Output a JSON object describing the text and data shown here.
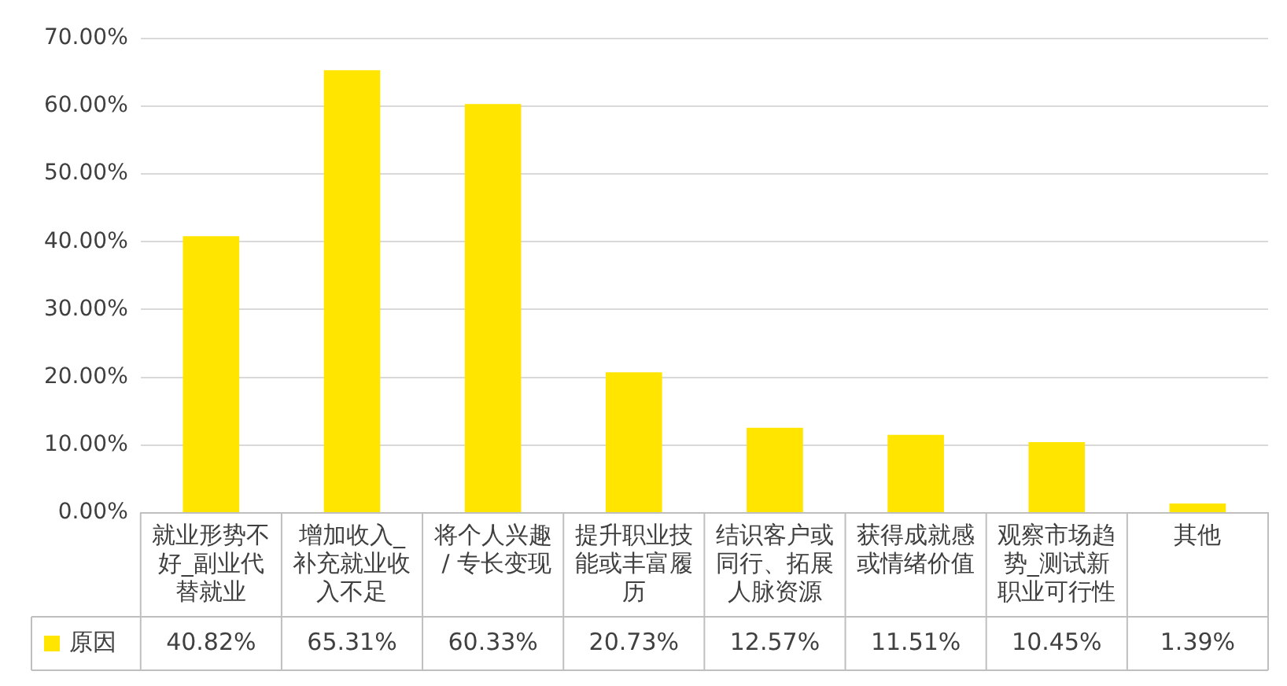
{
  "chart_data": {
    "type": "bar",
    "categories": [
      "就业形势不好_副业代替就业",
      "增加收入_补充就业收入不足",
      "将个人兴趣 / 专长变现",
      "提升职业技能或丰富履历",
      "结识客户或同行、拓展人脉资源",
      "获得成就感或情绪价值",
      "观察市场趋势_测试新职业可行性",
      "其他"
    ],
    "series": [
      {
        "name": "原因",
        "color": "#ffe500",
        "values": [
          40.82,
          65.31,
          60.33,
          20.73,
          12.57,
          11.51,
          10.45,
          1.39
        ],
        "value_labels": [
          "40.82%",
          "65.31%",
          "60.33%",
          "20.73%",
          "12.57%",
          "11.51%",
          "10.45%",
          "1.39%"
        ]
      }
    ],
    "ylim": [
      0,
      70
    ],
    "yticks": [
      {
        "value": 0,
        "label": "0.00%"
      },
      {
        "value": 10,
        "label": "10.00%"
      },
      {
        "value": 20,
        "label": "20.00%"
      },
      {
        "value": 30,
        "label": "30.00%"
      },
      {
        "value": 40,
        "label": "40.00%"
      },
      {
        "value": 50,
        "label": "50.00%"
      },
      {
        "value": 60,
        "label": "60.00%"
      },
      {
        "value": 70,
        "label": "70.00%"
      }
    ],
    "grid": "y",
    "legend": "bottom"
  }
}
